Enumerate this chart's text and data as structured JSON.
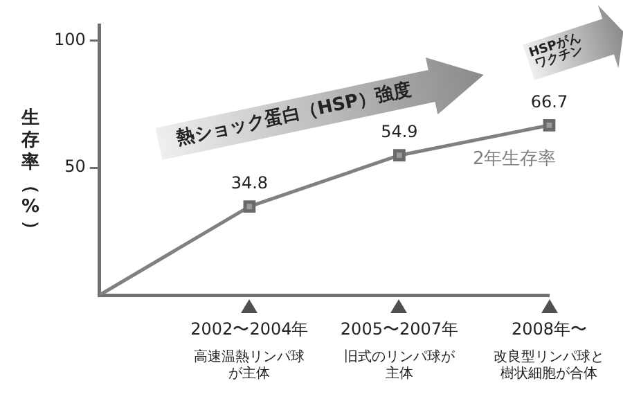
{
  "chart_data": {
    "type": "line",
    "categories": [
      null,
      "2002〜2004年",
      "2005〜2007年",
      "2008年〜"
    ],
    "series": [
      {
        "name": "2年生存率",
        "color": "#808080",
        "values": [
          0,
          34.8,
          54.9,
          66.7
        ],
        "value_labels": [
          null,
          "34.8",
          "54.9",
          "66.7"
        ]
      }
    ],
    "ylabel": "生存率（%）",
    "ylim": [
      0,
      106
    ],
    "yticks": [
      50,
      100
    ],
    "annotations": [
      "熱ショック蛋白（HSP）強度",
      "HSPがんワクチン",
      "高速温熱リンパ球が主体",
      "旧式のリンパ球が主体",
      "改良型リンパ球と樹状細胞が合体"
    ],
    "grid": false,
    "legend": false,
    "marker": "square",
    "line_style": "solid"
  }
}
